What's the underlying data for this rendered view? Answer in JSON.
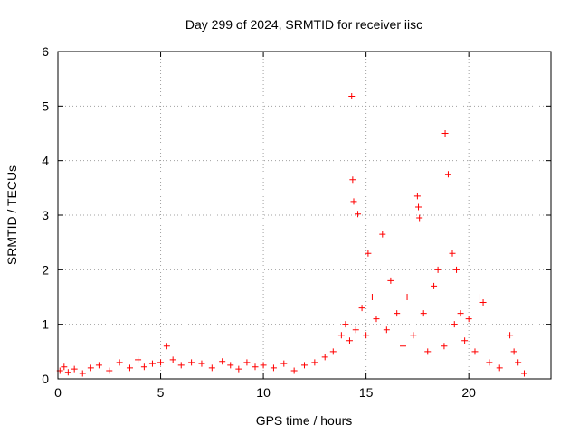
{
  "chart_data": {
    "type": "scatter",
    "title": "Day 299 of 2024, SRMTID for receiver iisc",
    "xlabel": "GPS time / hours",
    "ylabel": "SRMTID / TECUs",
    "xlim": [
      0,
      24
    ],
    "ylim": [
      0,
      6
    ],
    "xticks": [
      0,
      5,
      10,
      15,
      20
    ],
    "yticks": [
      0,
      1,
      2,
      3,
      4,
      5,
      6
    ],
    "grid": true,
    "marker": "+",
    "series": [
      {
        "name": "SRMTID",
        "color": "#ff0000",
        "x": [
          0.1,
          0.3,
          0.5,
          0.8,
          1.2,
          1.6,
          2.0,
          2.5,
          3.0,
          3.5,
          3.9,
          4.2,
          4.6,
          5.0,
          5.3,
          5.6,
          6.0,
          6.5,
          7.0,
          7.5,
          8.0,
          8.4,
          8.8,
          9.2,
          9.6,
          10.0,
          10.5,
          11.0,
          11.5,
          12.0,
          12.5,
          13.0,
          13.4,
          13.8,
          14.0,
          14.2,
          14.3,
          14.35,
          14.4,
          14.5,
          14.6,
          14.8,
          15.0,
          15.1,
          15.3,
          15.5,
          15.8,
          16.0,
          16.2,
          16.5,
          16.8,
          17.0,
          17.3,
          17.5,
          17.55,
          17.6,
          17.8,
          18.0,
          18.3,
          18.5,
          18.8,
          18.85,
          19.0,
          19.2,
          19.3,
          19.4,
          19.6,
          19.8,
          20.0,
          20.3,
          20.5,
          20.7,
          21.0,
          21.5,
          22.0,
          22.2,
          22.4,
          22.7
        ],
        "y": [
          0.15,
          0.22,
          0.12,
          0.18,
          0.1,
          0.2,
          0.25,
          0.15,
          0.3,
          0.2,
          0.35,
          0.22,
          0.28,
          0.3,
          0.6,
          0.35,
          0.25,
          0.3,
          0.28,
          0.2,
          0.32,
          0.25,
          0.18,
          0.3,
          0.22,
          0.25,
          0.2,
          0.28,
          0.15,
          0.25,
          0.3,
          0.4,
          0.5,
          0.8,
          1.0,
          0.7,
          5.18,
          3.65,
          3.25,
          0.9,
          3.02,
          1.3,
          0.8,
          2.3,
          1.5,
          1.1,
          2.65,
          0.9,
          1.8,
          1.2,
          0.6,
          1.5,
          0.8,
          3.35,
          3.15,
          2.95,
          1.2,
          0.5,
          1.7,
          2.0,
          0.6,
          4.5,
          3.75,
          2.3,
          1.0,
          2.0,
          1.2,
          0.7,
          1.1,
          0.5,
          1.5,
          1.4,
          0.3,
          0.2,
          0.8,
          0.5,
          0.3,
          0.1
        ]
      }
    ]
  }
}
